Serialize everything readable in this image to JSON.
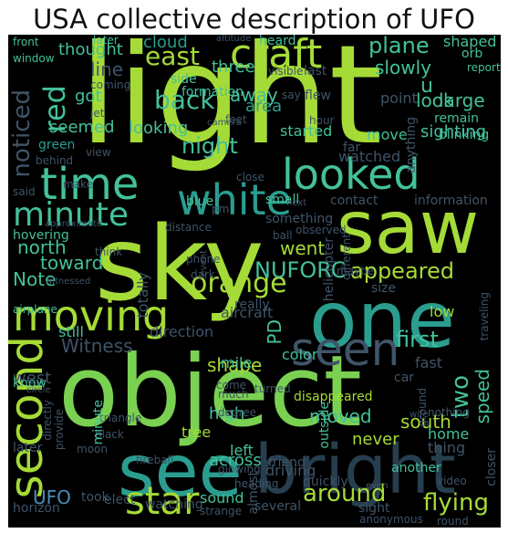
{
  "title": "USA collective description of UFO",
  "palette": {
    "background": "#000000",
    "lime": "#a5db36",
    "green": "#7ad151",
    "teal": "#2a9d8f",
    "teal_light": "#43c19b",
    "blue": "#4b8db8",
    "slate": "#3f5468",
    "dark": "#273e4e"
  },
  "words": [
    "light",
    "object",
    "sky",
    "saw",
    "one",
    "see",
    "bright",
    "looked",
    "time",
    "white",
    "seen",
    "second",
    "moving",
    "craft",
    "minute",
    "star",
    "red",
    "orange",
    "east",
    "back",
    "noticed",
    "night",
    "Note",
    "NUFORC",
    "appeared",
    "went",
    "north",
    "toward",
    "west",
    "Witness",
    "shape",
    "first",
    "two",
    "south",
    "UFO",
    "around",
    "flying",
    "disappeared",
    "plane",
    "slowly",
    "shaped",
    "large",
    "cloud",
    "three",
    "formation",
    "side",
    "area",
    "away",
    "looking",
    "started",
    "move",
    "sighting",
    "watched",
    "PD",
    "color",
    "mile",
    "still",
    "direction",
    "aircraft",
    "know",
    "low",
    "car",
    "fast",
    "speed",
    "moved",
    "high",
    "tree",
    "across",
    "left",
    "sound",
    "never",
    "home",
    "thing",
    "another",
    "driving",
    "outside",
    "blue",
    "small",
    "next",
    "thought",
    "seemed",
    "got",
    "green",
    "line",
    "later",
    "altitude",
    "heard",
    "front",
    "window",
    "report",
    "orb",
    "remain",
    "blinking",
    "information",
    "contact",
    "something",
    "helicopter",
    "traveling",
    "hovering",
    "approximate",
    "witnessed",
    "airplane",
    "circle",
    "triangle",
    "fireball",
    "glowing",
    "black",
    "moon",
    "horizon",
    "took",
    "elect",
    "watching",
    "strange",
    "anonymous",
    "round",
    "sight",
    "video",
    "closer",
    "nothing",
    "ground",
    "quickly",
    "friend",
    "wife",
    "almost",
    "several",
    "even",
    "feet",
    "last",
    "camera",
    "flew",
    "say",
    "heading",
    "come",
    "turned",
    "really",
    "maybe",
    "size",
    "phone",
    "dark",
    "totally",
    "event",
    "think",
    "distance",
    "ball",
    "observed",
    "different",
    "close",
    "later",
    "directly",
    "provide",
    "said",
    "make",
    "behind",
    "view",
    "far",
    "hour",
    "point",
    "anything",
    "look",
    "u",
    "visible",
    "jet",
    "coming",
    "degree",
    "much",
    "pm",
    "minute"
  ]
}
